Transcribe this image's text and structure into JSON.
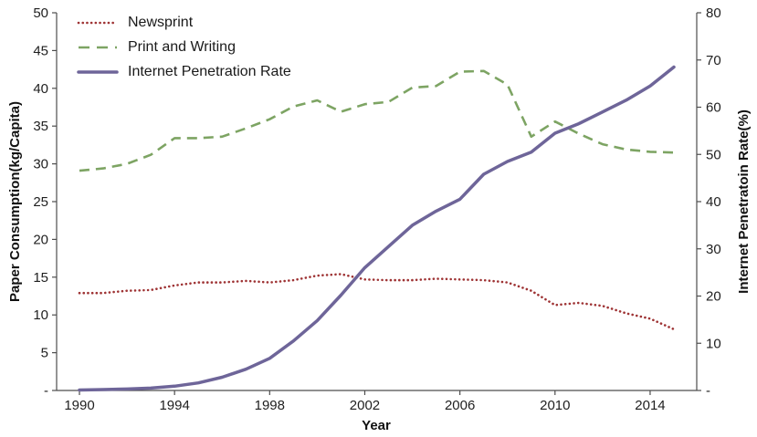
{
  "chart_data": {
    "type": "line",
    "title": "",
    "xlabel": "Year",
    "ylabel_left": "Paper Consumption(kg/Capita)",
    "ylabel_right": "Internet Penetratoin Rate(%)",
    "grid": false,
    "legend_position": "top-left-inside",
    "x": [
      1990,
      1991,
      1992,
      1993,
      1994,
      1995,
      1996,
      1997,
      1998,
      1999,
      2000,
      2001,
      2002,
      2003,
      2004,
      2005,
      2006,
      2007,
      2008,
      2009,
      2010,
      2011,
      2012,
      2013,
      2014,
      2015
    ],
    "x_ticks": [
      1990,
      1994,
      1998,
      2002,
      2006,
      2010,
      2014
    ],
    "left_axis": {
      "min": 0,
      "max": 50,
      "step": 5,
      "zero_label": "-"
    },
    "right_axis": {
      "min": 0,
      "max": 80,
      "step": 10,
      "zero_label": "-"
    },
    "axis_color": "#4d4d4d",
    "series": [
      {
        "name": "Newsprint",
        "axis": "left",
        "color": "#9e3334",
        "style": "dotted",
        "values": [
          12.9,
          12.9,
          13.2,
          13.3,
          13.9,
          14.3,
          14.3,
          14.5,
          14.3,
          14.6,
          15.2,
          15.4,
          14.7,
          14.6,
          14.6,
          14.8,
          14.7,
          14.6,
          14.3,
          13.2,
          11.3,
          11.6,
          11.2,
          10.2,
          9.5,
          8.1
        ]
      },
      {
        "name": "Print and Writing",
        "axis": "left",
        "color": "#7da463",
        "style": "dashed",
        "values": [
          29.1,
          29.4,
          30.0,
          31.2,
          33.4,
          33.4,
          33.6,
          34.7,
          35.9,
          37.6,
          38.4,
          36.9,
          37.9,
          38.2,
          40.1,
          40.3,
          42.2,
          42.3,
          40.5,
          33.6,
          35.6,
          34.0,
          32.6,
          31.9,
          31.6,
          31.5
        ]
      },
      {
        "name": "Internet Penetration Rate",
        "axis": "right",
        "color": "#6e6599",
        "style": "solid",
        "values": [
          0.1,
          0.2,
          0.3,
          0.5,
          0.9,
          1.6,
          2.8,
          4.5,
          6.8,
          10.5,
          14.8,
          20.2,
          26.0,
          30.5,
          35.0,
          38.0,
          40.5,
          45.8,
          48.5,
          50.5,
          54.5,
          56.5,
          59.0,
          61.5,
          64.5,
          68.5
        ]
      }
    ]
  }
}
